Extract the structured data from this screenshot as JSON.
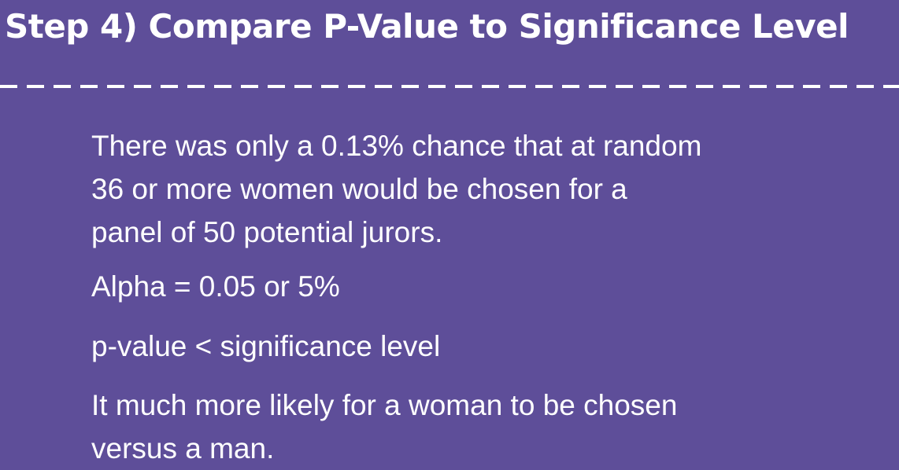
{
  "slide": {
    "title": "Step 4) Compare P-Value to Significance Level",
    "paragraphs": [
      {
        "lines": [
          "There was only a 0.13% chance that at random",
          "36 or more women would be chosen for a",
          "panel of 50 potential jurors."
        ]
      },
      {
        "lines": [
          "Alpha = 0.05 or 5%"
        ]
      },
      {
        "lines": [
          "p-value < significance level"
        ]
      },
      {
        "lines": [
          "It much more likely for a woman to be chosen",
          "versus a man."
        ]
      }
    ]
  },
  "colors": {
    "background": "#5e4e99",
    "text": "#ffffff",
    "divider": "#ffffff"
  }
}
